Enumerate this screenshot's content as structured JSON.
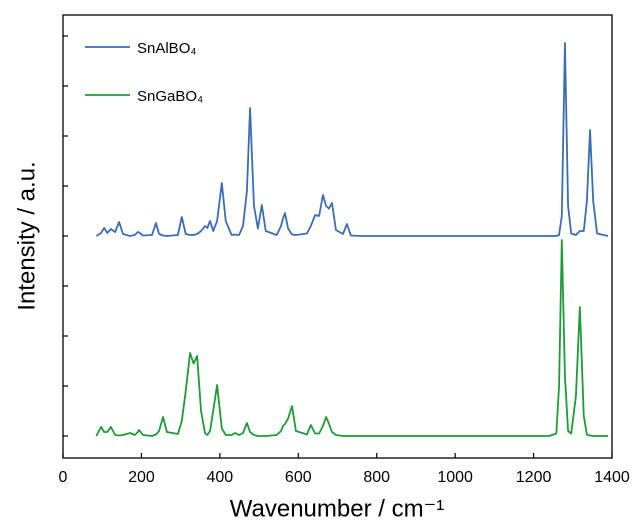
{
  "chart_data": {
    "type": "line",
    "x_label": "Wavenumber / cm⁻¹",
    "y_label": "Intensity / a.u.",
    "x": [
      85,
      97,
      105,
      113,
      122,
      133,
      143,
      153,
      171,
      183,
      191,
      194,
      204,
      227,
      237,
      245,
      255,
      265,
      293,
      303,
      313,
      324,
      333,
      342,
      352,
      362,
      368,
      375,
      383,
      393,
      405,
      415,
      430,
      439,
      449,
      459,
      469,
      477,
      487,
      497,
      507,
      517,
      545,
      556,
      561,
      566,
      574,
      584,
      594,
      622,
      632,
      643,
      653,
      663,
      671,
      678,
      686,
      696,
      714,
      724,
      734,
      760,
      1240,
      1258,
      1265,
      1272,
      1280,
      1288,
      1296,
      1308,
      1318,
      1328,
      1336,
      1344,
      1352,
      1362,
      1390
    ],
    "series": [
      {
        "name": "SnAlBO₄",
        "color": "#3a6db1",
        "values": [
          4.0,
          4.06,
          4.16,
          4.06,
          4.14,
          4.08,
          4.28,
          4.04,
          4.0,
          4.02,
          4.08,
          4.07,
          4.01,
          4.02,
          4.26,
          4.04,
          4.01,
          4.0,
          4.02,
          4.38,
          4.04,
          4.02,
          4.02,
          4.04,
          4.1,
          4.2,
          4.16,
          4.3,
          4.1,
          4.3,
          5.06,
          4.3,
          4.02,
          4.03,
          4.02,
          4.2,
          4.9,
          6.56,
          4.6,
          4.15,
          4.62,
          4.1,
          4.02,
          4.2,
          4.35,
          4.46,
          4.15,
          4.03,
          4.02,
          4.05,
          4.2,
          4.42,
          4.4,
          4.82,
          4.6,
          4.55,
          4.66,
          4.12,
          4.04,
          4.24,
          4.01,
          4.0,
          4.0,
          4.0,
          4.02,
          4.4,
          7.86,
          4.6,
          4.05,
          4.02,
          4.1,
          4.1,
          4.7,
          6.12,
          4.7,
          4.05,
          4.0
        ]
      },
      {
        "name": "SnGaBO₄",
        "color": "#1e9b38",
        "values": [
          0.0,
          0.18,
          0.08,
          0.08,
          0.18,
          0.02,
          0.01,
          0.02,
          0.06,
          0.02,
          0.08,
          0.12,
          0.02,
          0.0,
          0.03,
          0.1,
          0.38,
          0.08,
          0.04,
          0.3,
          0.9,
          1.66,
          1.45,
          1.6,
          0.5,
          0.06,
          0.02,
          0.1,
          0.5,
          1.02,
          0.15,
          0.02,
          0.02,
          0.06,
          0.02,
          0.06,
          0.26,
          0.08,
          0.02,
          0.0,
          0.0,
          0.0,
          0.02,
          0.1,
          0.2,
          0.24,
          0.35,
          0.6,
          0.1,
          0.03,
          0.22,
          0.05,
          0.05,
          0.2,
          0.38,
          0.25,
          0.08,
          0.02,
          0.0,
          0.0,
          0.0,
          0.0,
          0.0,
          0.05,
          1.0,
          3.92,
          1.2,
          0.1,
          0.05,
          0.8,
          2.58,
          0.4,
          0.03,
          0.01,
          0.0,
          0.0,
          0.0
        ]
      }
    ],
    "xlim": [
      0,
      1400
    ],
    "xticks": [
      0,
      200,
      400,
      600,
      800,
      1000,
      1200,
      1400
    ],
    "ylim": [
      -0.44,
      8.42
    ],
    "yticks": [
      0,
      1,
      2,
      3,
      4,
      5,
      6,
      7,
      8
    ],
    "legend": "upper left"
  }
}
